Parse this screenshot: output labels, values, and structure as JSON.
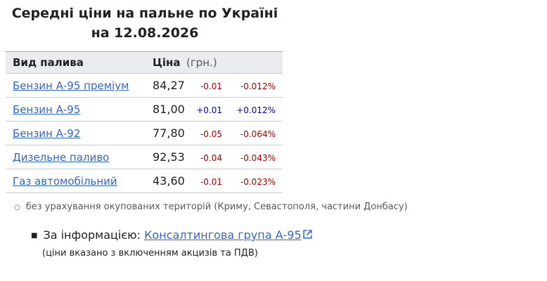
{
  "header": {
    "title_lines": [
      "Середні ціни на пальне по Україні",
      "на 12.08.2026"
    ]
  },
  "table": {
    "columns": [
      "Вид палива",
      "Ціна",
      "(грн.)"
    ],
    "rows": [
      [
        "Бензин А-95 преміум",
        "84,27",
        "-0.01",
        "-0.012%"
      ],
      [
        "Бензин А-95",
        "81,00",
        "+0.01",
        "+0.012%"
      ],
      [
        "Бензин А-92",
        "77,80",
        "-0.05",
        "-0.064%"
      ],
      [
        "Дизельне паливо",
        "92,53",
        "-0.04",
        "-0.043%"
      ],
      [
        "Газ автомобільний",
        "43,60",
        "-0.01",
        "-0.023%"
      ]
    ]
  },
  "footnote": "без урахування окупованих територій (Криму, Севастополя, частини Донбасу)",
  "source": {
    "label": "За інформацією:",
    "link": "Консалтингова група А-95",
    "note": "(ціни вказано з включенням акцизів та ПДВ)"
  }
}
